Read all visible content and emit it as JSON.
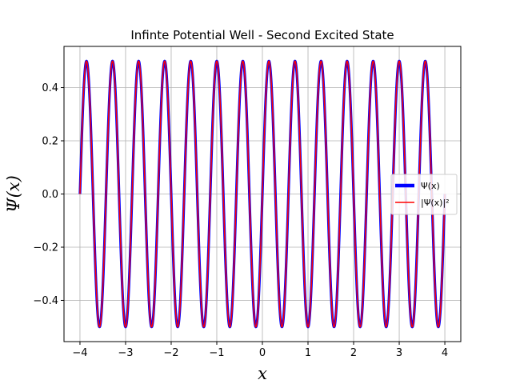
{
  "chart_data": {
    "type": "line",
    "title": "Infinte Potential Well - Second Excited State",
    "xlabel": "x",
    "ylabel": "Ψ(x)",
    "xlim": [
      -4.35,
      4.35
    ],
    "ylim": [
      -0.555,
      0.555
    ],
    "xticks": [
      -4,
      -3,
      -2,
      -1,
      0,
      1,
      2,
      3,
      4
    ],
    "xtick_labels": [
      "−4",
      "−3",
      "−2",
      "−1",
      "0",
      "1",
      "2",
      "3",
      "4"
    ],
    "yticks": [
      -0.4,
      -0.2,
      0.0,
      0.2,
      0.4
    ],
    "ytick_labels": [
      "−0.4",
      "−0.2",
      "0.0",
      "0.2",
      "0.4"
    ],
    "grid": true,
    "legend_position": "center-right",
    "series": [
      {
        "name": "Ψ(x)",
        "color": "#0000ff",
        "function": "0.5*sin(3*pi*(x+4)/(2*pi/ ... ))",
        "amplitude": 0.5,
        "x_start": -4,
        "x_end": 4,
        "cycles": 14,
        "style": "thick"
      },
      {
        "name": "|Ψ(x)|²",
        "color": "#ff0000",
        "amplitude": 0.5,
        "x_start": -4,
        "x_end": 4,
        "cycles": 14,
        "style": "thin"
      }
    ]
  }
}
